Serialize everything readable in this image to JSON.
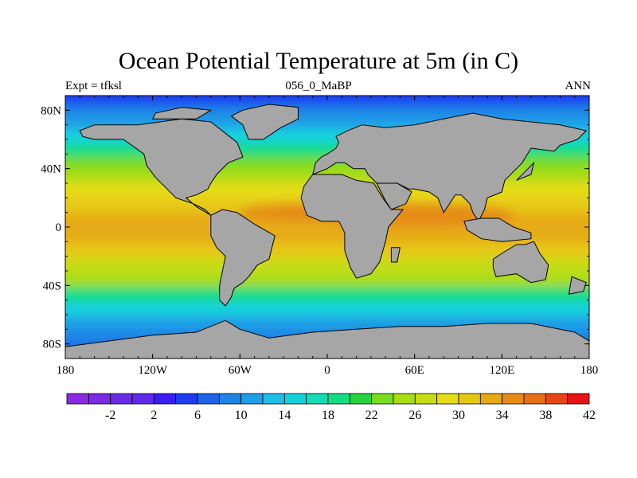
{
  "title": "Ocean Potential Temperature at 5m (in C)",
  "subtitle_left": "Expt = tfksl",
  "subtitle_center": "056_0_MaBP",
  "subtitle_right": "ANN",
  "map": {
    "projection": "cylindrical equidistant",
    "lon_range": [
      -180,
      180
    ],
    "lat_range": [
      -90,
      90
    ],
    "land_color": "#a6a6a6",
    "lon_ticks": [
      {
        "value": -180,
        "label": "180"
      },
      {
        "value": -120,
        "label": "120W"
      },
      {
        "value": -60,
        "label": "60W"
      },
      {
        "value": 0,
        "label": "0"
      },
      {
        "value": 60,
        "label": "60E"
      },
      {
        "value": 120,
        "label": "120E"
      },
      {
        "value": 180,
        "label": "180"
      }
    ],
    "lat_ticks": [
      {
        "value": 80,
        "label": "80N"
      },
      {
        "value": 40,
        "label": "40N"
      },
      {
        "value": 0,
        "label": "0"
      },
      {
        "value": -40,
        "label": "40S"
      },
      {
        "value": -80,
        "label": "80S"
      }
    ],
    "temperature_bands": [
      {
        "lat": 88,
        "value": 4
      },
      {
        "lat": 80,
        "value": 8
      },
      {
        "lat": 72,
        "value": 11
      },
      {
        "lat": 62,
        "value": 14
      },
      {
        "lat": 52,
        "value": 18
      },
      {
        "lat": 44,
        "value": 22
      },
      {
        "lat": 36,
        "value": 25
      },
      {
        "lat": 26,
        "value": 28
      },
      {
        "lat": 14,
        "value": 31
      },
      {
        "lat": 4,
        "value": 33
      },
      {
        "lat": -6,
        "value": 32
      },
      {
        "lat": -16,
        "value": 30
      },
      {
        "lat": -26,
        "value": 27
      },
      {
        "lat": -36,
        "value": 24
      },
      {
        "lat": -46,
        "value": 19
      },
      {
        "lat": -56,
        "value": 14
      },
      {
        "lat": -66,
        "value": 11
      },
      {
        "lat": -76,
        "value": 8
      },
      {
        "lat": -86,
        "value": 6
      }
    ],
    "warm_pool": [
      {
        "lon": 60,
        "lat": 8,
        "rlon": 70,
        "rlat": 8,
        "value": 34
      },
      {
        "lon": -20,
        "lat": 10,
        "rlon": 40,
        "rlat": 6,
        "value": 34
      }
    ],
    "land": [
      {
        "name": "North America",
        "coords": [
          [
            -170,
            66
          ],
          [
            -160,
            70
          ],
          [
            -130,
            70
          ],
          [
            -100,
            74
          ],
          [
            -80,
            72
          ],
          [
            -62,
            58
          ],
          [
            -58,
            48
          ],
          [
            -68,
            44
          ],
          [
            -76,
            36
          ],
          [
            -80,
            30
          ],
          [
            -82,
            26
          ],
          [
            -90,
            22
          ],
          [
            -97,
            20
          ],
          [
            -90,
            14
          ],
          [
            -80,
            8
          ],
          [
            -84,
            12
          ],
          [
            -92,
            16
          ],
          [
            -104,
            20
          ],
          [
            -112,
            28
          ],
          [
            -118,
            34
          ],
          [
            -124,
            42
          ],
          [
            -126,
            50
          ],
          [
            -140,
            60
          ],
          [
            -160,
            60
          ],
          [
            -168,
            62
          ]
        ]
      },
      {
        "name": "Greenland",
        "coords": [
          [
            -54,
            60
          ],
          [
            -44,
            60
          ],
          [
            -32,
            68
          ],
          [
            -20,
            74
          ],
          [
            -20,
            82
          ],
          [
            -40,
            84
          ],
          [
            -58,
            80
          ],
          [
            -66,
            76
          ],
          [
            -58,
            70
          ]
        ]
      },
      {
        "name": "Arctic islands",
        "coords": [
          [
            -120,
            74
          ],
          [
            -90,
            74
          ],
          [
            -80,
            80
          ],
          [
            -100,
            82
          ],
          [
            -118,
            78
          ]
        ]
      },
      {
        "name": "South America",
        "coords": [
          [
            -80,
            8
          ],
          [
            -72,
            12
          ],
          [
            -62,
            10
          ],
          [
            -50,
            2
          ],
          [
            -36,
            -6
          ],
          [
            -38,
            -14
          ],
          [
            -40,
            -22
          ],
          [
            -48,
            -26
          ],
          [
            -54,
            -34
          ],
          [
            -58,
            -38
          ],
          [
            -64,
            -42
          ],
          [
            -66,
            -48
          ],
          [
            -70,
            -54
          ],
          [
            -74,
            -50
          ],
          [
            -74,
            -40
          ],
          [
            -72,
            -30
          ],
          [
            -70,
            -20
          ],
          [
            -76,
            -14
          ],
          [
            -80,
            -6
          ],
          [
            -80,
            0
          ]
        ]
      },
      {
        "name": "Eurasia",
        "coords": [
          [
            -10,
            36
          ],
          [
            -8,
            44
          ],
          [
            -4,
            48
          ],
          [
            0,
            50
          ],
          [
            6,
            54
          ],
          [
            8,
            58
          ],
          [
            6,
            62
          ],
          [
            14,
            66
          ],
          [
            24,
            70
          ],
          [
            40,
            68
          ],
          [
            60,
            70
          ],
          [
            80,
            74
          ],
          [
            100,
            78
          ],
          [
            120,
            74
          ],
          [
            140,
            72
          ],
          [
            160,
            70
          ],
          [
            178,
            66
          ],
          [
            172,
            60
          ],
          [
            160,
            56
          ],
          [
            156,
            52
          ],
          [
            140,
            54
          ],
          [
            134,
            44
          ],
          [
            128,
            38
          ],
          [
            122,
            32
          ],
          [
            120,
            24
          ],
          [
            110,
            20
          ],
          [
            108,
            12
          ],
          [
            104,
            4
          ],
          [
            100,
            10
          ],
          [
            98,
            16
          ],
          [
            92,
            22
          ],
          [
            88,
            22
          ],
          [
            80,
            10
          ],
          [
            76,
            20
          ],
          [
            70,
            24
          ],
          [
            60,
            26
          ],
          [
            56,
            26
          ],
          [
            48,
            30
          ],
          [
            44,
            14
          ],
          [
            40,
            18
          ],
          [
            34,
            30
          ],
          [
            28,
            36
          ],
          [
            26,
            40
          ],
          [
            18,
            40
          ],
          [
            12,
            44
          ],
          [
            6,
            44
          ],
          [
            0,
            40
          ]
        ]
      },
      {
        "name": "Africa",
        "coords": [
          [
            -18,
            20
          ],
          [
            -16,
            28
          ],
          [
            -10,
            36
          ],
          [
            0,
            36
          ],
          [
            10,
            36
          ],
          [
            20,
            32
          ],
          [
            32,
            30
          ],
          [
            38,
            20
          ],
          [
            44,
            12
          ],
          [
            52,
            12
          ],
          [
            42,
            0
          ],
          [
            40,
            -10
          ],
          [
            36,
            -24
          ],
          [
            30,
            -32
          ],
          [
            20,
            -35
          ],
          [
            16,
            -28
          ],
          [
            12,
            -16
          ],
          [
            12,
            -4
          ],
          [
            8,
            4
          ],
          [
            -4,
            4
          ],
          [
            -14,
            8
          ]
        ]
      },
      {
        "name": "Arabia",
        "coords": [
          [
            34,
            30
          ],
          [
            48,
            30
          ],
          [
            58,
            24
          ],
          [
            54,
            16
          ],
          [
            44,
            12
          ],
          [
            40,
            18
          ]
        ]
      },
      {
        "name": "Indonesia",
        "coords": [
          [
            94,
            4
          ],
          [
            106,
            6
          ],
          [
            118,
            6
          ],
          [
            128,
            0
          ],
          [
            140,
            -4
          ],
          [
            140,
            -8
          ],
          [
            120,
            -10
          ],
          [
            106,
            -8
          ],
          [
            96,
            -2
          ]
        ]
      },
      {
        "name": "Madagascar",
        "coords": [
          [
            44,
            -14
          ],
          [
            50,
            -14
          ],
          [
            48,
            -24
          ],
          [
            44,
            -24
          ]
        ]
      },
      {
        "name": "Australia",
        "coords": [
          [
            114,
            -22
          ],
          [
            120,
            -18
          ],
          [
            130,
            -12
          ],
          [
            136,
            -12
          ],
          [
            142,
            -10
          ],
          [
            146,
            -18
          ],
          [
            152,
            -26
          ],
          [
            150,
            -36
          ],
          [
            140,
            -38
          ],
          [
            130,
            -32
          ],
          [
            116,
            -34
          ],
          [
            114,
            -28
          ]
        ]
      },
      {
        "name": "New Zealand",
        "coords": [
          [
            168,
            -34
          ],
          [
            178,
            -38
          ],
          [
            176,
            -44
          ],
          [
            166,
            -46
          ]
        ]
      },
      {
        "name": "Japan",
        "coords": [
          [
            130,
            32
          ],
          [
            140,
            36
          ],
          [
            142,
            44
          ],
          [
            138,
            40
          ]
        ]
      },
      {
        "name": "Antarctica",
        "coords": [
          [
            -180,
            -90
          ],
          [
            -180,
            -82
          ],
          [
            -150,
            -78
          ],
          [
            -120,
            -74
          ],
          [
            -90,
            -72
          ],
          [
            -70,
            -64
          ],
          [
            -60,
            -70
          ],
          [
            -40,
            -76
          ],
          [
            -10,
            -72
          ],
          [
            20,
            -70
          ],
          [
            50,
            -68
          ],
          [
            80,
            -68
          ],
          [
            110,
            -66
          ],
          [
            140,
            -66
          ],
          [
            170,
            -72
          ],
          [
            180,
            -78
          ],
          [
            180,
            -90
          ]
        ]
      }
    ]
  },
  "colorbar": {
    "colors": [
      "#8a2be2",
      "#7b2be3",
      "#6a2be6",
      "#5d2ae8",
      "#3a1ef0",
      "#1e3cf0",
      "#1e64e6",
      "#1e82e6",
      "#1e9ee6",
      "#1ebee6",
      "#14d2dc",
      "#14dcb4",
      "#14dc82",
      "#28d23c",
      "#7adc1e",
      "#a8dc14",
      "#c8dc14",
      "#e6dc14",
      "#e6c814",
      "#e6aa14",
      "#e68c14",
      "#e66e14",
      "#e64614",
      "#e61414"
    ],
    "labels": [
      "-2",
      "2",
      "6",
      "10",
      "14",
      "18",
      "22",
      "26",
      "30",
      "34",
      "38",
      "42"
    ],
    "min": -6,
    "step": 2
  }
}
